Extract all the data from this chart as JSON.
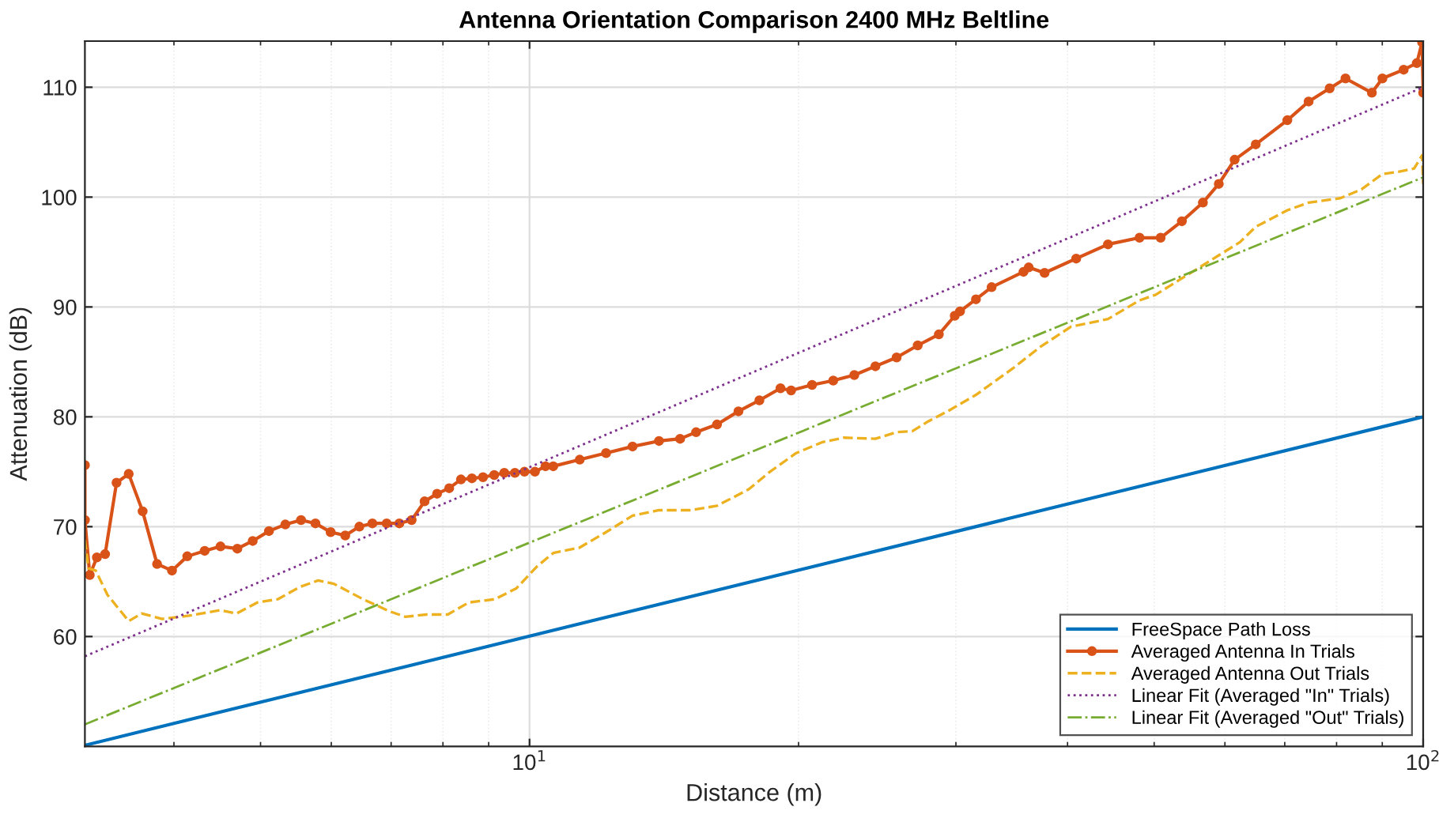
{
  "chart_data": {
    "type": "line",
    "title": "Antenna Orientation Comparison 2400 MHz Beltline",
    "xlabel": "Distance (m)",
    "ylabel": "Attenuation (dB)",
    "log": "x",
    "grid": true,
    "legend": "bottom right",
    "xlim": [
      3.18,
      100
    ],
    "xticks": [
      {
        "value": 10,
        "label": "10$^{1}$"
      },
      {
        "value": 100,
        "label": "10$^{2}$"
      }
    ],
    "ylim": [
      50,
      114.2
    ],
    "yticks": [
      60,
      70,
      80,
      90,
      100,
      110
    ],
    "series": [
      {
        "name": "FreeSpace Path Loss",
        "color": "#0072bd",
        "line_style": "solid",
        "marker": "none",
        "x": [
          3.18,
          100
        ],
        "values": [
          50.1,
          80.0
        ]
      },
      {
        "name": "Averaged Antenna In Trials",
        "color": "#d95319",
        "line_style": "solid",
        "marker": "circle",
        "x": [
          3.18,
          3.18,
          3.22,
          3.28,
          3.35,
          3.45,
          3.56,
          3.69,
          3.83,
          3.98,
          4.14,
          4.33,
          4.51,
          4.71,
          4.9,
          5.11,
          5.33,
          5.55,
          5.76,
          5.99,
          6.22,
          6.45,
          6.67,
          6.92,
          7.15,
          7.38,
          7.63,
          7.88,
          8.13,
          8.38,
          8.62,
          8.87,
          9.13,
          9.37,
          9.63,
          9.87,
          10.14,
          10.42,
          10.63,
          11.38,
          12.18,
          13.04,
          13.96,
          14.74,
          15.36,
          16.21,
          17.13,
          18.08,
          19.09,
          19.62,
          20.71,
          21.87,
          23.09,
          24.38,
          25.75,
          27.19,
          28.71,
          29.91,
          30.32,
          31.59,
          32.89,
          35.71,
          36.19,
          37.7,
          40.9,
          44.39,
          48.15,
          50.84,
          53.7,
          56.69,
          59.06,
          61.52,
          64.96,
          70.47,
          74.44,
          78.59,
          81.86,
          87.62,
          90.03,
          95.1,
          98.38,
          99.72,
          100
        ],
        "values": [
          75.6,
          70.6,
          65.6,
          67.2,
          67.5,
          74.0,
          74.8,
          71.4,
          66.6,
          66.0,
          67.3,
          67.8,
          68.2,
          68.0,
          68.7,
          69.6,
          70.2,
          70.6,
          70.3,
          69.5,
          69.2,
          70.0,
          70.3,
          70.3,
          70.3,
          70.6,
          72.3,
          73.0,
          73.5,
          74.3,
          74.4,
          74.5,
          74.7,
          74.9,
          74.9,
          75.0,
          75.0,
          75.5,
          75.5,
          76.1,
          76.7,
          77.3,
          77.8,
          78.0,
          78.6,
          79.3,
          80.5,
          81.5,
          82.6,
          82.4,
          82.9,
          83.3,
          83.8,
          84.6,
          85.4,
          86.5,
          87.5,
          89.2,
          89.6,
          90.7,
          91.8,
          93.2,
          93.6,
          93.1,
          94.4,
          95.7,
          96.3,
          96.3,
          97.8,
          99.5,
          101.2,
          103.4,
          104.8,
          107.0,
          108.7,
          109.9,
          110.8,
          109.5,
          110.8,
          111.6,
          112.2,
          114.1,
          109.5
        ]
      },
      {
        "name": "Averaged Antenna Out Trials",
        "color": "#edb120",
        "line_style": "dashed",
        "marker": "none",
        "x": [
          3.18,
          3.21,
          3.27,
          3.37,
          3.56,
          3.68,
          3.88,
          4.16,
          4.51,
          4.7,
          4.96,
          5.23,
          5.53,
          5.8,
          6.04,
          6.51,
          6.97,
          7.26,
          7.67,
          8.1,
          8.55,
          9.15,
          9.67,
          10.2,
          10.63,
          11.38,
          12.18,
          13.04,
          13.96,
          15.15,
          16.21,
          17.59,
          18.58,
          19.88,
          21.28,
          22.47,
          24.38,
          25.75,
          26.83,
          27.95,
          29.51,
          31.59,
          34.73,
          37.19,
          40.35,
          44.39,
          48.15,
          50.16,
          52.25,
          55.94,
          59.06,
          62.37,
          64.96,
          70.47,
          74.44,
          80.78,
          85.29,
          90.03,
          93.8,
          97.7,
          99.72,
          100
        ],
        "values": [
          68.8,
          66.2,
          66.0,
          63.8,
          61.4,
          62.1,
          61.6,
          61.9,
          62.4,
          62.1,
          63.1,
          63.4,
          64.5,
          65.1,
          64.8,
          63.4,
          62.3,
          61.8,
          62.0,
          62.0,
          63.1,
          63.4,
          64.4,
          66.4,
          67.6,
          68.1,
          69.5,
          71.0,
          71.5,
          71.5,
          71.9,
          73.4,
          75.0,
          76.7,
          77.7,
          78.1,
          78.0,
          78.6,
          78.7,
          79.6,
          80.6,
          82.0,
          84.4,
          86.3,
          88.2,
          88.9,
          90.6,
          91.1,
          92.0,
          93.5,
          94.7,
          95.9,
          97.3,
          98.8,
          99.5,
          99.9,
          100.7,
          102.1,
          102.3,
          102.6,
          103.8,
          101.2
        ]
      },
      {
        "name": "Linear Fit (Averaged \"In\" Trials)",
        "color": "#7e2f8e",
        "line_style": "dotted",
        "marker": "none",
        "x": [
          3.18,
          100
        ],
        "values": [
          58.2,
          110.0
        ]
      },
      {
        "name": "Linear Fit (Averaged \"Out\" Trials)",
        "color": "#77ac30",
        "line_style": "dashdot",
        "marker": "none",
        "x": [
          3.18,
          100
        ],
        "values": [
          52.0,
          101.8
        ]
      }
    ]
  }
}
